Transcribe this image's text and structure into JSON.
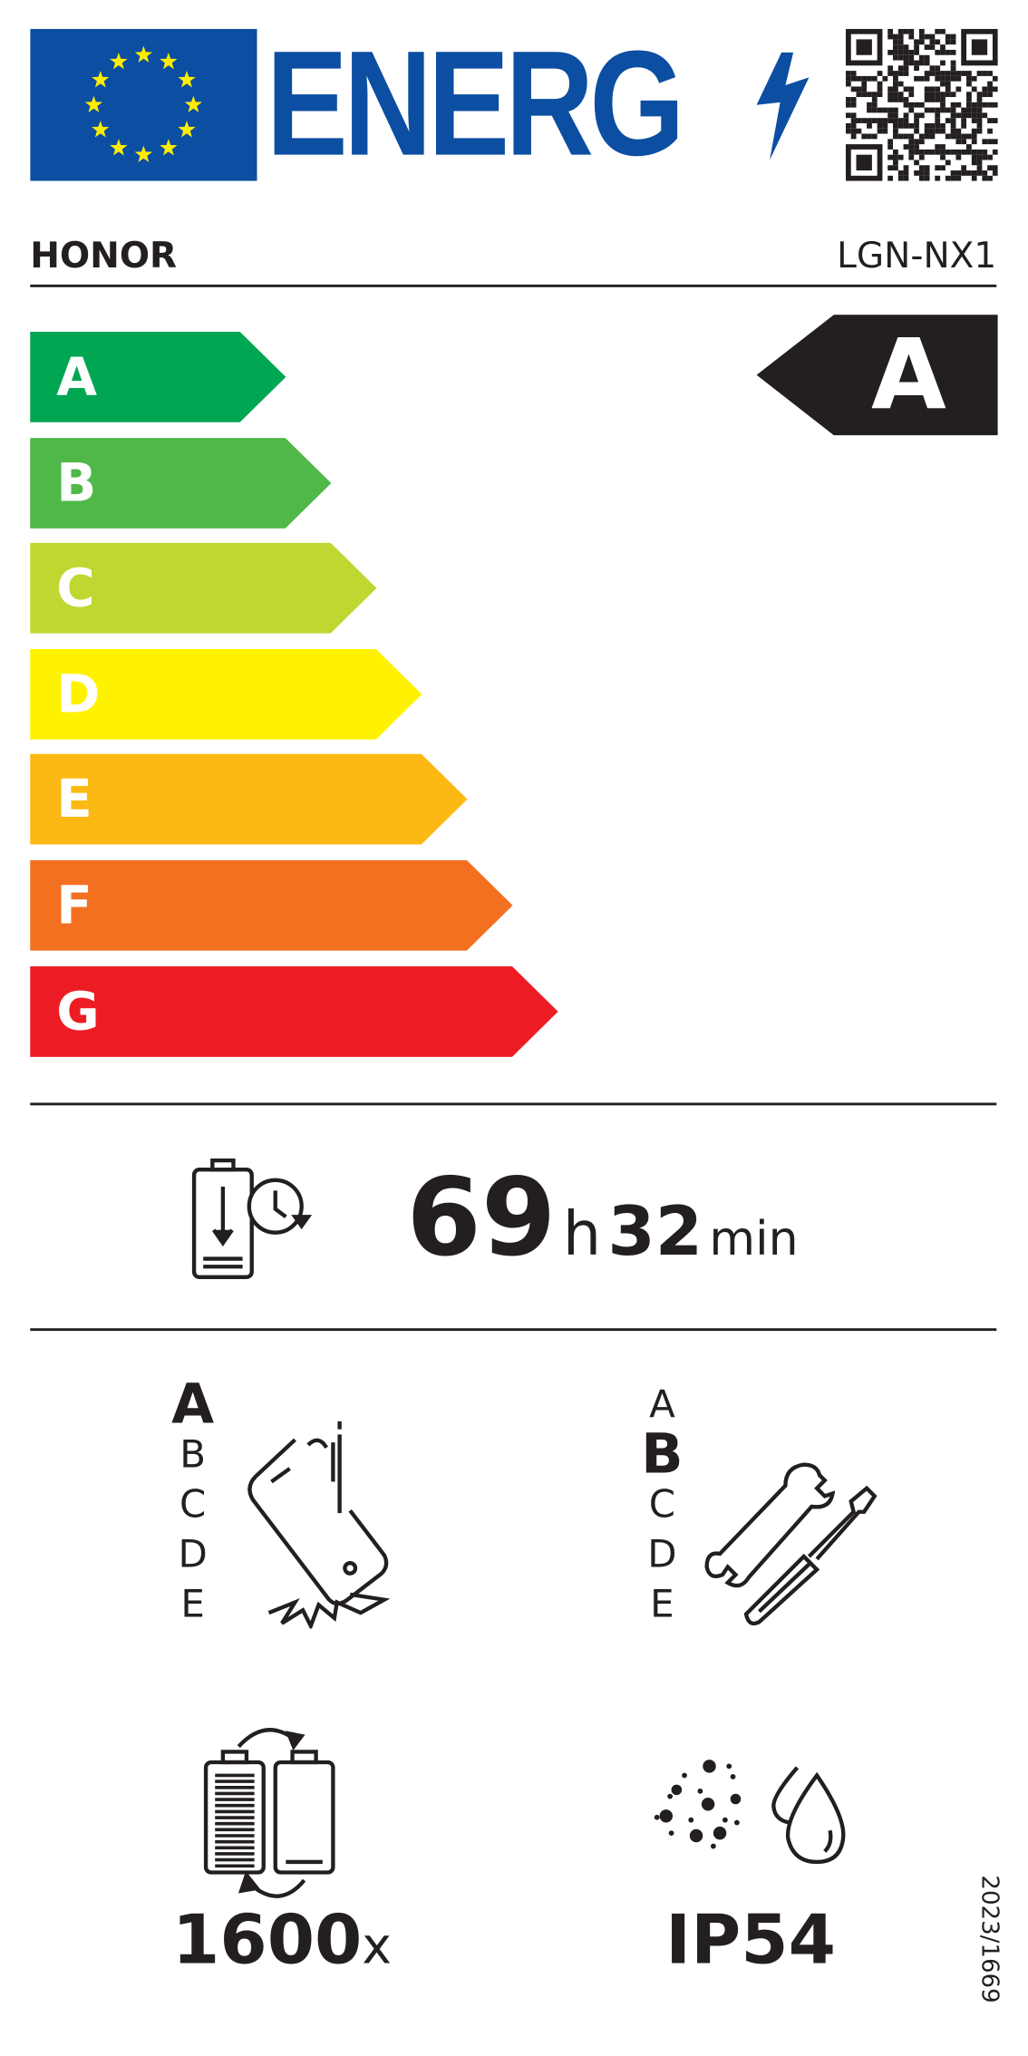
{
  "header": {
    "logo_text": "ENERG",
    "brand": "HONOR",
    "model": "LGN-NX1"
  },
  "colors": {
    "eu_blue": "#0b4ea2",
    "eu_star": "#ffed00",
    "A": "#00a651",
    "B": "#50b848",
    "C": "#bfd730",
    "D": "#fff200",
    "E": "#fdb913",
    "F": "#f37021",
    "G": "#ed1c24",
    "rating": "#231f20"
  },
  "energy_scale": [
    "A",
    "B",
    "C",
    "D",
    "E",
    "F",
    "G"
  ],
  "energy_class": "A",
  "battery_endurance": {
    "hours": "69",
    "h_unit": "h",
    "minutes": "32",
    "min_unit": "min"
  },
  "drop_resistance": {
    "classes": [
      "A",
      "B",
      "C",
      "D",
      "E"
    ],
    "selected": "A"
  },
  "repairability": {
    "classes": [
      "A",
      "B",
      "C",
      "D",
      "E"
    ],
    "selected": "B"
  },
  "battery_cycles": {
    "value": "1600",
    "unit": "x"
  },
  "ingress_protection": "IP54",
  "regulation": "2023/1669"
}
